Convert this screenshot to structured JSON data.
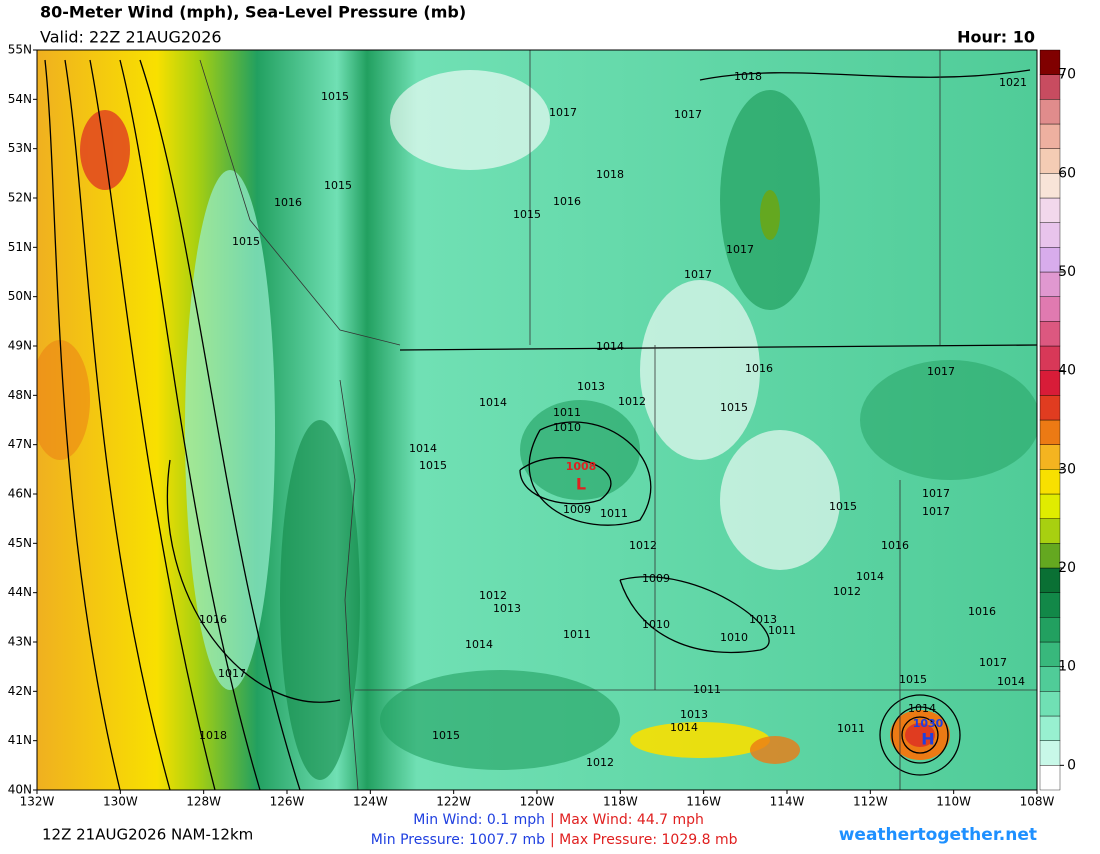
{
  "header": {
    "title": "80-Meter Wind (mph), Sea-Level Pressure (mb)",
    "valid": "Valid: 22Z 21AUG2026",
    "hour": "Hour: 10"
  },
  "map": {
    "lat_labels": [
      "55N",
      "54N",
      "53N",
      "52N",
      "51N",
      "50N",
      "49N",
      "48N",
      "47N",
      "46N",
      "45N",
      "44N",
      "43N",
      "42N",
      "41N",
      "40N"
    ],
    "lon_labels": [
      "132W",
      "130W",
      "128W",
      "126W",
      "124W",
      "122W",
      "120W",
      "118W",
      "116W",
      "114W",
      "112W",
      "110W",
      "108W"
    ],
    "isobar_labels": [
      "1015",
      "1017",
      "1017",
      "1018",
      "1021",
      "1015",
      "1016",
      "1018",
      "1016",
      "1015",
      "1015",
      "1017",
      "1017",
      "1014",
      "1016",
      "1017",
      "1013",
      "1012",
      "1015",
      "1014",
      "1011",
      "1010",
      "1014",
      "1015",
      "1009",
      "1011",
      "1015",
      "1017",
      "1017",
      "1012",
      "1016",
      "1014",
      "1009",
      "1012",
      "1012",
      "1013",
      "1016",
      "1016",
      "1013",
      "1010",
      "1011",
      "1010",
      "1011",
      "1014",
      "1017",
      "1014",
      "1015",
      "1017",
      "1011",
      "1013",
      "1014",
      "1014",
      "1011",
      "1018",
      "1015",
      "1012"
    ],
    "low": {
      "pressure": "1008",
      "symbol": "L"
    },
    "high": {
      "pressure": "1030",
      "symbol": "H"
    }
  },
  "colorbar": {
    "range": [
      -2.5,
      72.5
    ],
    "ticks": [
      0,
      10,
      20,
      30,
      40,
      50,
      60,
      70
    ],
    "colors": [
      "#ffffff",
      "#c8f8e8",
      "#98f0d0",
      "#70e0b4",
      "#50cc98",
      "#38b87c",
      "#22a060",
      "#128848",
      "#0a7034",
      "#64a820",
      "#a8d010",
      "#e0ec00",
      "#f8e000",
      "#f4b420",
      "#ec7a14",
      "#e03c20",
      "#d81c38",
      "#d83858",
      "#dc5880",
      "#e07ab0",
      "#e098d0",
      "#d8acec",
      "#e8c4ec",
      "#f2d8ec",
      "#f8e4d8",
      "#f4ccb4",
      "#eeb0a0",
      "#e08c8c",
      "#c84c60",
      "#800000"
    ]
  },
  "footer": {
    "run": "12Z 21AUG2026 NAM-12km",
    "min_wind": "Min Wind:  0.1 mph",
    "max_wind": "| Max Wind:  44.7 mph",
    "min_pressure": "Min Pressure: 1007.7 mb",
    "max_pressure": "| Max Pressure: 1029.8 mb",
    "site": "weathertogether.net"
  }
}
